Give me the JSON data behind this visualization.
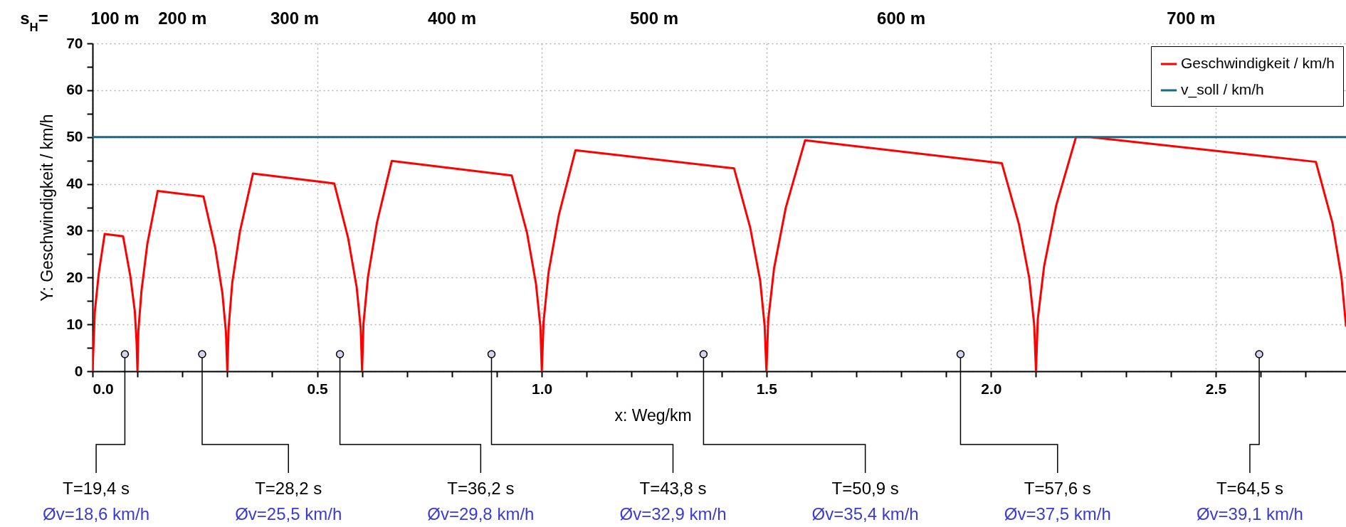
{
  "chart_data": {
    "type": "line",
    "xlabel": "x: Weg/km",
    "ylabel": "Y: Geschwindigkeit / km/h",
    "xlim": [
      0,
      2.79
    ],
    "ylim": [
      0,
      70
    ],
    "xticks": [
      {
        "value": 0,
        "label": "0.0"
      },
      {
        "value": 0.1,
        "label": null
      },
      {
        "value": 0.2,
        "label": null
      },
      {
        "value": 0.3,
        "label": null
      },
      {
        "value": 0.4,
        "label": null
      },
      0.5,
      {
        "value": 0.6,
        "label": null
      },
      {
        "value": 0.7,
        "label": null
      },
      {
        "value": 0.8,
        "label": null
      },
      {
        "value": 0.9,
        "label": null
      },
      {
        "value": 1,
        "label": "1.0"
      },
      {
        "value": 1.1,
        "label": null
      },
      {
        "value": 1.2,
        "label": null
      },
      {
        "value": 1.3,
        "label": null
      },
      {
        "value": 1.4,
        "label": null
      },
      1.5,
      {
        "value": 1.6,
        "label": null
      },
      {
        "value": 1.7,
        "label": null
      },
      {
        "value": 1.8,
        "label": null
      },
      {
        "value": 1.9,
        "label": null
      },
      {
        "value": 2,
        "label": "2.0"
      },
      {
        "value": 2.1,
        "label": null
      },
      {
        "value": 2.2,
        "label": null
      },
      {
        "value": 2.3,
        "label": null
      },
      {
        "value": 2.4,
        "label": null
      },
      2.5,
      {
        "value": 2.6,
        "label": null
      },
      {
        "value": 2.7,
        "label": null
      }
    ],
    "yticks": [
      0,
      {
        "value": 5,
        "label": null
      },
      10,
      {
        "value": 15,
        "label": null
      },
      20,
      {
        "value": 25,
        "label": null
      },
      30,
      {
        "value": 35,
        "label": null
      },
      40,
      {
        "value": 45,
        "label": null
      },
      50,
      {
        "value": 55,
        "label": null
      },
      60,
      {
        "value": 65,
        "label": null
      },
      70
    ],
    "grid": true,
    "legend": "top right",
    "series": [
      {
        "name": "Geschwindigkeit / km/h",
        "color": "#ff0000",
        "x": [
          0,
          0.005,
          0.014,
          0.027,
          0.068,
          0.084,
          0.094,
          0.098,
          0.1,
          0.102,
          0.109,
          0.122,
          0.145,
          0.247,
          0.273,
          0.289,
          0.297,
          0.3,
          0.303,
          0.311,
          0.328,
          0.357,
          0.538,
          0.569,
          0.588,
          0.597,
          0.6,
          0.603,
          0.613,
          0.633,
          0.666,
          0.933,
          0.967,
          0.987,
          0.997,
          1.0,
          1.004,
          1.015,
          1.038,
          1.075,
          1.428,
          1.464,
          1.486,
          1.496,
          1.5,
          1.504,
          1.517,
          1.543,
          1.586,
          2.024,
          2.062,
          2.085,
          2.096,
          2.1,
          2.104,
          2.118,
          2.145,
          2.189,
          2.22,
          2.723,
          2.76,
          2.78,
          2.79
        ],
        "values": [
          0,
          12.6,
          21,
          29.3,
          28.8,
          20.4,
          12.9,
          6.4,
          0,
          8.6,
          17.2,
          27.2,
          38.5,
          37.3,
          26.4,
          16.7,
          8.3,
          0,
          9.4,
          18.9,
          29.8,
          42.2,
          40.1,
          28.4,
          17.9,
          9,
          0,
          10.1,
          20.1,
          31.7,
          44.9,
          41.8,
          29.6,
          18.7,
          9.4,
          0,
          10.6,
          21.1,
          33.4,
          47.2,
          43.3,
          30.6,
          19.4,
          9.7,
          0,
          11,
          22,
          34.9,
          49.3,
          44.4,
          31.4,
          19.9,
          9.9,
          0,
          11.2,
          22.4,
          35.4,
          50,
          50,
          44.7,
          31.6,
          20,
          9.7
        ]
      },
      {
        "name": "v_soll / km/h",
        "color": "#15698c",
        "x": [
          0,
          2.79
        ],
        "values": [
          50,
          50
        ]
      }
    ],
    "annotations": [
      "s$_{H}$=",
      "100 m",
      "200 m",
      "300 m",
      "400 m",
      "500 m",
      "600 m",
      "700 m",
      "T=19,4 s",
      "Øv=18,6 km/h",
      "T=28,2 s",
      "Øv=25,5 km/h",
      "T=36,2 s",
      "Øv=29,8 km/h",
      "T=43,8 s",
      "Øv=32,9 km/h",
      "T=50,9 s",
      "Øv=35,4 km/h",
      "T=57,6 s",
      "Øv=37,5 km/h",
      "T=64,5 s",
      "Øv=39,1 km/h"
    ]
  }
}
